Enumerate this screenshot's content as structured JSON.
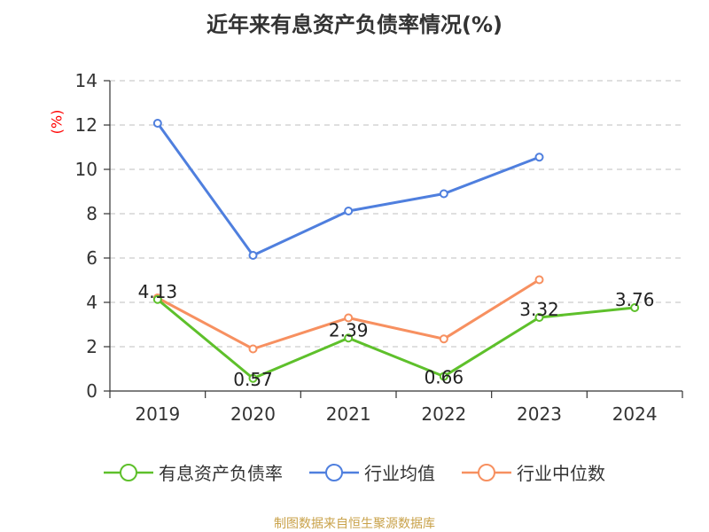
{
  "title": "近年来有息资产负债率情况(%)",
  "unit_label": "(%)",
  "source": "制图数据来自恒生聚源数据库",
  "chart_data": {
    "type": "line",
    "title": "近年来有息资产负债率情况(%)",
    "ylabel": "(%)",
    "categories": [
      "2019",
      "2020",
      "2021",
      "2022",
      "2023",
      "2024"
    ],
    "ylim": [
      0,
      14
    ],
    "yticks": [
      0,
      2,
      4,
      6,
      8,
      10,
      12,
      14
    ],
    "grid": true,
    "legend_position": "bottom",
    "series": [
      {
        "name": "有息资产负债率",
        "color": "#5ec02b",
        "values": [
          4.13,
          0.57,
          2.39,
          0.66,
          3.32,
          3.76
        ],
        "labels": [
          "4.13",
          "0.57",
          "2.39",
          "0.66",
          "3.32",
          "3.76"
        ]
      },
      {
        "name": "行业均值",
        "color": "#4f7fde",
        "values": [
          12.08,
          6.12,
          8.12,
          8.9,
          10.55,
          null
        ]
      },
      {
        "name": "行业中位数",
        "color": "#f79060",
        "values": [
          4.2,
          1.9,
          3.3,
          2.35,
          5.02,
          null
        ]
      }
    ]
  }
}
